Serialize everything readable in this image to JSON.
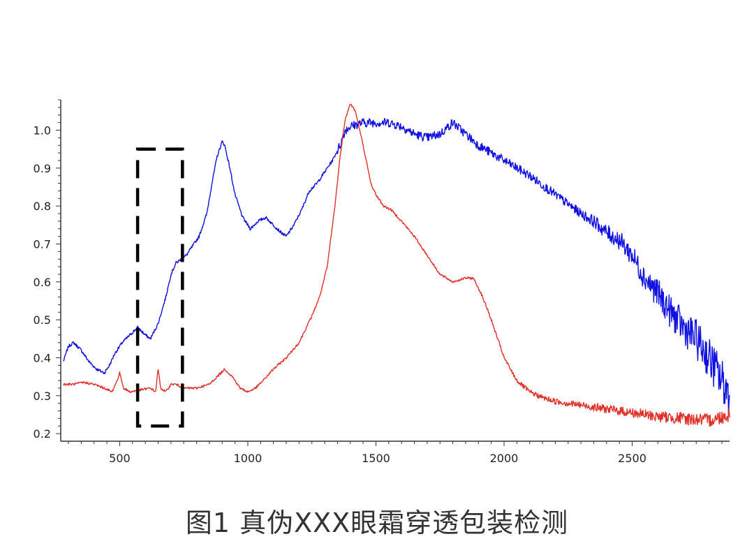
{
  "caption": "图1 真伪XXX眼霜穿透包装检测",
  "chart_data": {
    "type": "line",
    "title": "",
    "xlabel": "",
    "ylabel": "",
    "xlim": [
      270,
      2880
    ],
    "ylim": [
      0.18,
      1.08
    ],
    "x_ticks": [
      500,
      1000,
      1500,
      2000,
      2500
    ],
    "y_ticks": [
      0.2,
      0.3,
      0.4,
      0.5,
      0.6,
      0.7,
      0.8,
      0.9,
      1.0
    ],
    "x_tick_labels": [
      "500",
      "1000",
      "1500",
      "2000",
      "2500"
    ],
    "y_tick_labels": [
      "0.2",
      "0.3",
      "0.4",
      "0.5",
      "0.6",
      "0.7",
      "0.8",
      "0.9",
      "1.0"
    ],
    "grid": false,
    "legend": "none",
    "series": [
      {
        "color": "#1010e0",
        "x": [
          280,
          300,
          320,
          350,
          380,
          410,
          440,
          460,
          480,
          510,
          540,
          570,
          600,
          620,
          650,
          680,
          700,
          720,
          740,
          760,
          780,
          810,
          840,
          860,
          880,
          900,
          910,
          930,
          950,
          980,
          1010,
          1040,
          1070,
          1100,
          1130,
          1150,
          1180,
          1210,
          1240,
          1270,
          1300,
          1330,
          1360,
          1380,
          1400,
          1450,
          1500,
          1550,
          1600,
          1650,
          1700,
          1750,
          1800,
          1850,
          1900,
          2000,
          2100,
          2200,
          2300,
          2350,
          2400,
          2450,
          2500,
          2550,
          2600,
          2650,
          2700,
          2750,
          2800,
          2850,
          2880
        ],
        "y": [
          0.39,
          0.43,
          0.44,
          0.42,
          0.39,
          0.37,
          0.36,
          0.38,
          0.41,
          0.44,
          0.46,
          0.48,
          0.46,
          0.45,
          0.49,
          0.56,
          0.62,
          0.65,
          0.66,
          0.67,
          0.69,
          0.72,
          0.78,
          0.86,
          0.93,
          0.97,
          0.96,
          0.9,
          0.83,
          0.77,
          0.74,
          0.76,
          0.77,
          0.75,
          0.73,
          0.72,
          0.75,
          0.79,
          0.84,
          0.86,
          0.89,
          0.92,
          0.96,
          1.0,
          1.01,
          1.02,
          1.02,
          1.02,
          1.01,
          0.99,
          0.98,
          0.99,
          1.02,
          0.99,
          0.96,
          0.92,
          0.88,
          0.83,
          0.78,
          0.76,
          0.73,
          0.71,
          0.67,
          0.61,
          0.57,
          0.52,
          0.48,
          0.45,
          0.4,
          0.34,
          0.3
        ]
      },
      {
        "color": "#e0302a",
        "x": [
          280,
          320,
          360,
          400,
          440,
          470,
          490,
          500,
          515,
          540,
          580,
          620,
          640,
          650,
          660,
          680,
          700,
          720,
          750,
          800,
          850,
          880,
          910,
          940,
          970,
          1000,
          1030,
          1060,
          1100,
          1150,
          1200,
          1250,
          1280,
          1310,
          1340,
          1360,
          1380,
          1400,
          1420,
          1450,
          1480,
          1500,
          1530,
          1560,
          1600,
          1650,
          1700,
          1750,
          1800,
          1850,
          1880,
          1910,
          1940,
          1970,
          2000,
          2050,
          2100,
          2150,
          2200,
          2300,
          2400,
          2500,
          2600,
          2700,
          2800,
          2880
        ],
        "y": [
          0.33,
          0.33,
          0.335,
          0.33,
          0.32,
          0.31,
          0.34,
          0.36,
          0.32,
          0.31,
          0.315,
          0.32,
          0.31,
          0.37,
          0.32,
          0.31,
          0.33,
          0.33,
          0.32,
          0.32,
          0.33,
          0.35,
          0.37,
          0.35,
          0.32,
          0.31,
          0.32,
          0.34,
          0.37,
          0.4,
          0.44,
          0.51,
          0.56,
          0.64,
          0.8,
          0.93,
          1.03,
          1.07,
          1.05,
          0.96,
          0.86,
          0.83,
          0.8,
          0.79,
          0.76,
          0.72,
          0.67,
          0.62,
          0.6,
          0.61,
          0.61,
          0.57,
          0.52,
          0.46,
          0.4,
          0.34,
          0.31,
          0.295,
          0.285,
          0.275,
          0.265,
          0.255,
          0.245,
          0.24,
          0.235,
          0.25
        ]
      }
    ],
    "annotations": [
      {
        "type": "dashed-rectangle",
        "x_range": [
          570,
          745
        ],
        "y_range": [
          0.22,
          0.95
        ],
        "color": "#000000"
      }
    ]
  }
}
